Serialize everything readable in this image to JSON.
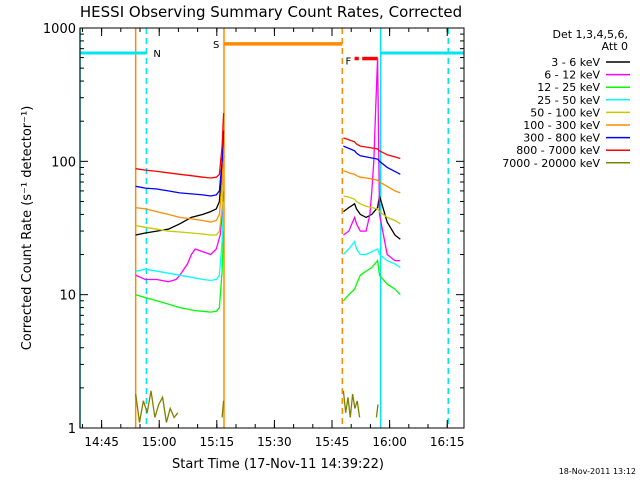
{
  "chart_data": {
    "type": "line",
    "title": "HESSI Observing Summary Count Rates, Corrected",
    "xlabel": "Start Time (17-Nov-11 14:39:22)",
    "ylabel": "Corrected Count Rate (s⁻¹ detector⁻¹)",
    "x_unit": "minutes after 14:39:22 UT",
    "xlim": [
      0,
      100
    ],
    "ylim": [
      1,
      1000
    ],
    "yscale": "log",
    "x_ticks": [
      {
        "t": 5.63,
        "label": "14:45"
      },
      {
        "t": 20.63,
        "label": "15:00"
      },
      {
        "t": 35.63,
        "label": "15:15"
      },
      {
        "t": 50.63,
        "label": "15:30"
      },
      {
        "t": 65.63,
        "label": "15:45"
      },
      {
        "t": 80.63,
        "label": "16:00"
      },
      {
        "t": 95.63,
        "label": "16:15"
      }
    ],
    "y_ticks": [
      {
        "v": 1,
        "label": "1"
      },
      {
        "v": 10,
        "label": "10"
      },
      {
        "v": 100,
        "label": "100"
      },
      {
        "v": 1000,
        "label": "1000"
      }
    ],
    "legend": {
      "placement": "right",
      "header": [
        "Det 1,3,4,5,6,",
        "Att 0"
      ]
    },
    "series": [
      {
        "name": "3 - 6 keV",
        "color": "#000000",
        "segments": [
          {
            "x": [
              14.5,
              17,
              20,
              23,
              26,
              29,
              32,
              34,
              35.5,
              36.3,
              37,
              37.4
            ],
            "y": [
              28,
              29,
              30,
              31,
              34,
              38,
              40,
              42,
              44,
              50,
              90,
              110
            ]
          },
          {
            "x": [
              68.6,
              70,
              71.5,
              72,
              73,
              74.5,
              76,
              77.5,
              78,
              80,
              82,
              83.4
            ],
            "y": [
              42,
              45,
              48,
              44,
              40,
              38,
              40,
              45,
              55,
              35,
              28,
              26
            ]
          }
        ]
      },
      {
        "name": "6 - 12 keV",
        "color": "#ff00ff",
        "segments": [
          {
            "x": [
              14.5,
              17,
              20,
              23,
              25,
              26,
              28,
              29,
              30,
              32,
              34,
              35.5,
              36.5,
              37,
              37.4
            ],
            "y": [
              14,
              13,
              13,
              12.5,
              13,
              14,
              17,
              20,
              22,
              21,
              20,
              22,
              28,
              40,
              60
            ]
          },
          {
            "x": [
              68.6,
              70,
              71.5,
              72,
              73,
              74.5,
              75.5,
              76,
              76.5,
              77,
              77.5,
              78,
              80,
              82,
              83.4
            ],
            "y": [
              28,
              30,
              38,
              34,
              30,
              30,
              40,
              60,
              100,
              250,
              600,
              40,
              20,
              18,
              18
            ]
          }
        ]
      },
      {
        "name": "12 - 25 keV",
        "color": "#00ff00",
        "segments": [
          {
            "x": [
              14.5,
              17,
              20,
              23,
              26,
              28,
              30,
              32,
              34,
              35.5,
              36.3,
              37,
              37.4
            ],
            "y": [
              10,
              9.5,
              9,
              8.5,
              8,
              7.8,
              7.6,
              7.5,
              7.4,
              7.5,
              8,
              15,
              30
            ]
          },
          {
            "x": [
              68.6,
              70,
              71.5,
              72,
              73,
              74.5,
              76,
              77.5,
              78,
              80,
              82,
              83.4
            ],
            "y": [
              9,
              10,
              11,
              12,
              14,
              15,
              16,
              18,
              14,
              12,
              11,
              10
            ]
          }
        ]
      },
      {
        "name": "25 - 50 keV",
        "color": "#00ffff",
        "segments": [
          {
            "x": [
              14.5,
              17,
              20,
              23,
              26,
              29,
              32,
              34,
              35.5,
              36.3,
              37,
              37.4
            ],
            "y": [
              15,
              15.5,
              15,
              14.5,
              14,
              13.5,
              13,
              12.8,
              13,
              14,
              25,
              50
            ]
          },
          {
            "x": [
              68.6,
              70,
              71.5,
              72,
              73,
              74.5,
              76,
              77.5,
              78,
              80,
              82,
              83.4
            ],
            "y": [
              20,
              22,
              25,
              22,
              20,
              20,
              21,
              22,
              20,
              18,
              17,
              16
            ]
          }
        ]
      },
      {
        "name": "50 - 100 keV",
        "color": "#c8c800",
        "segments": [
          {
            "x": [
              14.5,
              17,
              20,
              23,
              26,
              29,
              32,
              34,
              35.5,
              36.3,
              37,
              37.4
            ],
            "y": [
              33,
              32,
              31,
              30,
              29.5,
              29,
              28.5,
              28,
              28,
              30,
              45,
              80
            ]
          },
          {
            "x": [
              68.6,
              70,
              71.5,
              72,
              73,
              74.5,
              76,
              77.5,
              78,
              80,
              82,
              83.4
            ],
            "y": [
              55,
              54,
              52,
              50,
              48,
              46,
              45,
              44,
              42,
              38,
              36,
              34
            ]
          }
        ]
      },
      {
        "name": "100 - 300 keV",
        "color": "#ff8c00",
        "segments": [
          {
            "x": [
              14.5,
              17,
              20,
              23,
              26,
              29,
              32,
              34,
              35.5,
              36.3,
              37,
              37.4
            ],
            "y": [
              45,
              44,
              42,
              40,
              38,
              37,
              36,
              35,
              36,
              40,
              70,
              120
            ]
          },
          {
            "x": [
              68.6,
              70,
              71.5,
              72,
              73,
              74.5,
              76,
              77.5,
              78,
              80,
              82,
              83.4
            ],
            "y": [
              85,
              82,
              80,
              78,
              76,
              75,
              74,
              72,
              70,
              65,
              60,
              58
            ]
          }
        ]
      },
      {
        "name": "300 - 800 keV",
        "color": "#0000ff",
        "segments": [
          {
            "x": [
              14.5,
              17,
              20,
              23,
              26,
              29,
              32,
              34,
              35.5,
              36.3,
              37,
              37.4
            ],
            "y": [
              65,
              63,
              62,
              60,
              58,
              57,
              56,
              55,
              56,
              60,
              100,
              170
            ]
          },
          {
            "x": [
              68.6,
              70,
              71.5,
              72,
              73,
              74.5,
              76,
              77.5,
              78,
              80,
              82,
              83.4
            ],
            "y": [
              130,
              125,
              120,
              115,
              110,
              108,
              106,
              104,
              100,
              90,
              84,
              80
            ]
          }
        ]
      },
      {
        "name": "800 - 7000 keV",
        "color": "#ff0000",
        "segments": [
          {
            "x": [
              14.5,
              17,
              20,
              23,
              26,
              29,
              32,
              34,
              35.5,
              36.3,
              37,
              37.4
            ],
            "y": [
              88,
              86,
              84,
              82,
              80,
              78,
              76,
              75,
              76,
              80,
              130,
              230
            ]
          },
          {
            "x": [
              68.6,
              70,
              71.5,
              72,
              73,
              74.5,
              76,
              77.5,
              78,
              80,
              82,
              83.4
            ],
            "y": [
              150,
              145,
              140,
              135,
              130,
              128,
              126,
              124,
              120,
              112,
              108,
              105
            ]
          }
        ]
      },
      {
        "name": "7000 - 20000 keV",
        "color": "#808000",
        "segments": [
          {
            "x": [
              14.5,
              15.5,
              16.5,
              17.5,
              18.5,
              19.5,
              20.5,
              21.5,
              22.5,
              23.5,
              24.5,
              25.5
            ],
            "y": [
              1.8,
              1.1,
              1.6,
              1.3,
              1.9,
              1.2,
              1.5,
              1.7,
              1.1,
              1.4,
              1.2,
              1.3
            ]
          },
          {
            "x": [
              37,
              37.4
            ],
            "y": [
              1.2,
              1.6
            ]
          },
          {
            "x": [
              68.6,
              69.2,
              69.8,
              70.4,
              71,
              71.6,
              72.2,
              72.8
            ],
            "y": [
              1.9,
              1.3,
              1.7,
              1.2,
              1.8,
              1.4,
              1.6,
              1.2
            ]
          },
          {
            "x": [
              77.2,
              77.6
            ],
            "y": [
              1.2,
              1.5
            ]
          }
        ]
      }
    ],
    "markers": {
      "cyan_bars": [
        {
          "x0": 0,
          "x1": 17.3,
          "y": 650,
          "label": "N"
        },
        {
          "x0": 78.3,
          "x1": 100,
          "y": 650
        }
      ],
      "orange_bars": [
        {
          "x0": 37.5,
          "x1": 68.3,
          "y": 760,
          "label": "S"
        }
      ],
      "red_bars": [
        {
          "x0": 71.5,
          "x1": 72.6,
          "y": 590
        },
        {
          "x0": 73.5,
          "x1": 77.5,
          "y": 590,
          "label": "F"
        }
      ],
      "cyan_lines": [
        {
          "x": 0,
          "style": "solid"
        },
        {
          "x": 17.3,
          "style": "dashed"
        },
        {
          "x": 78.3,
          "style": "solid"
        },
        {
          "x": 95.9,
          "style": "dashed"
        }
      ],
      "orange_lines": [
        {
          "x": 14.5,
          "style": "solid"
        },
        {
          "x": 37.5,
          "style": "solid"
        },
        {
          "x": 68.3,
          "style": "dashed"
        }
      ]
    },
    "footer_date": "18-Nov-2011 13:12"
  }
}
